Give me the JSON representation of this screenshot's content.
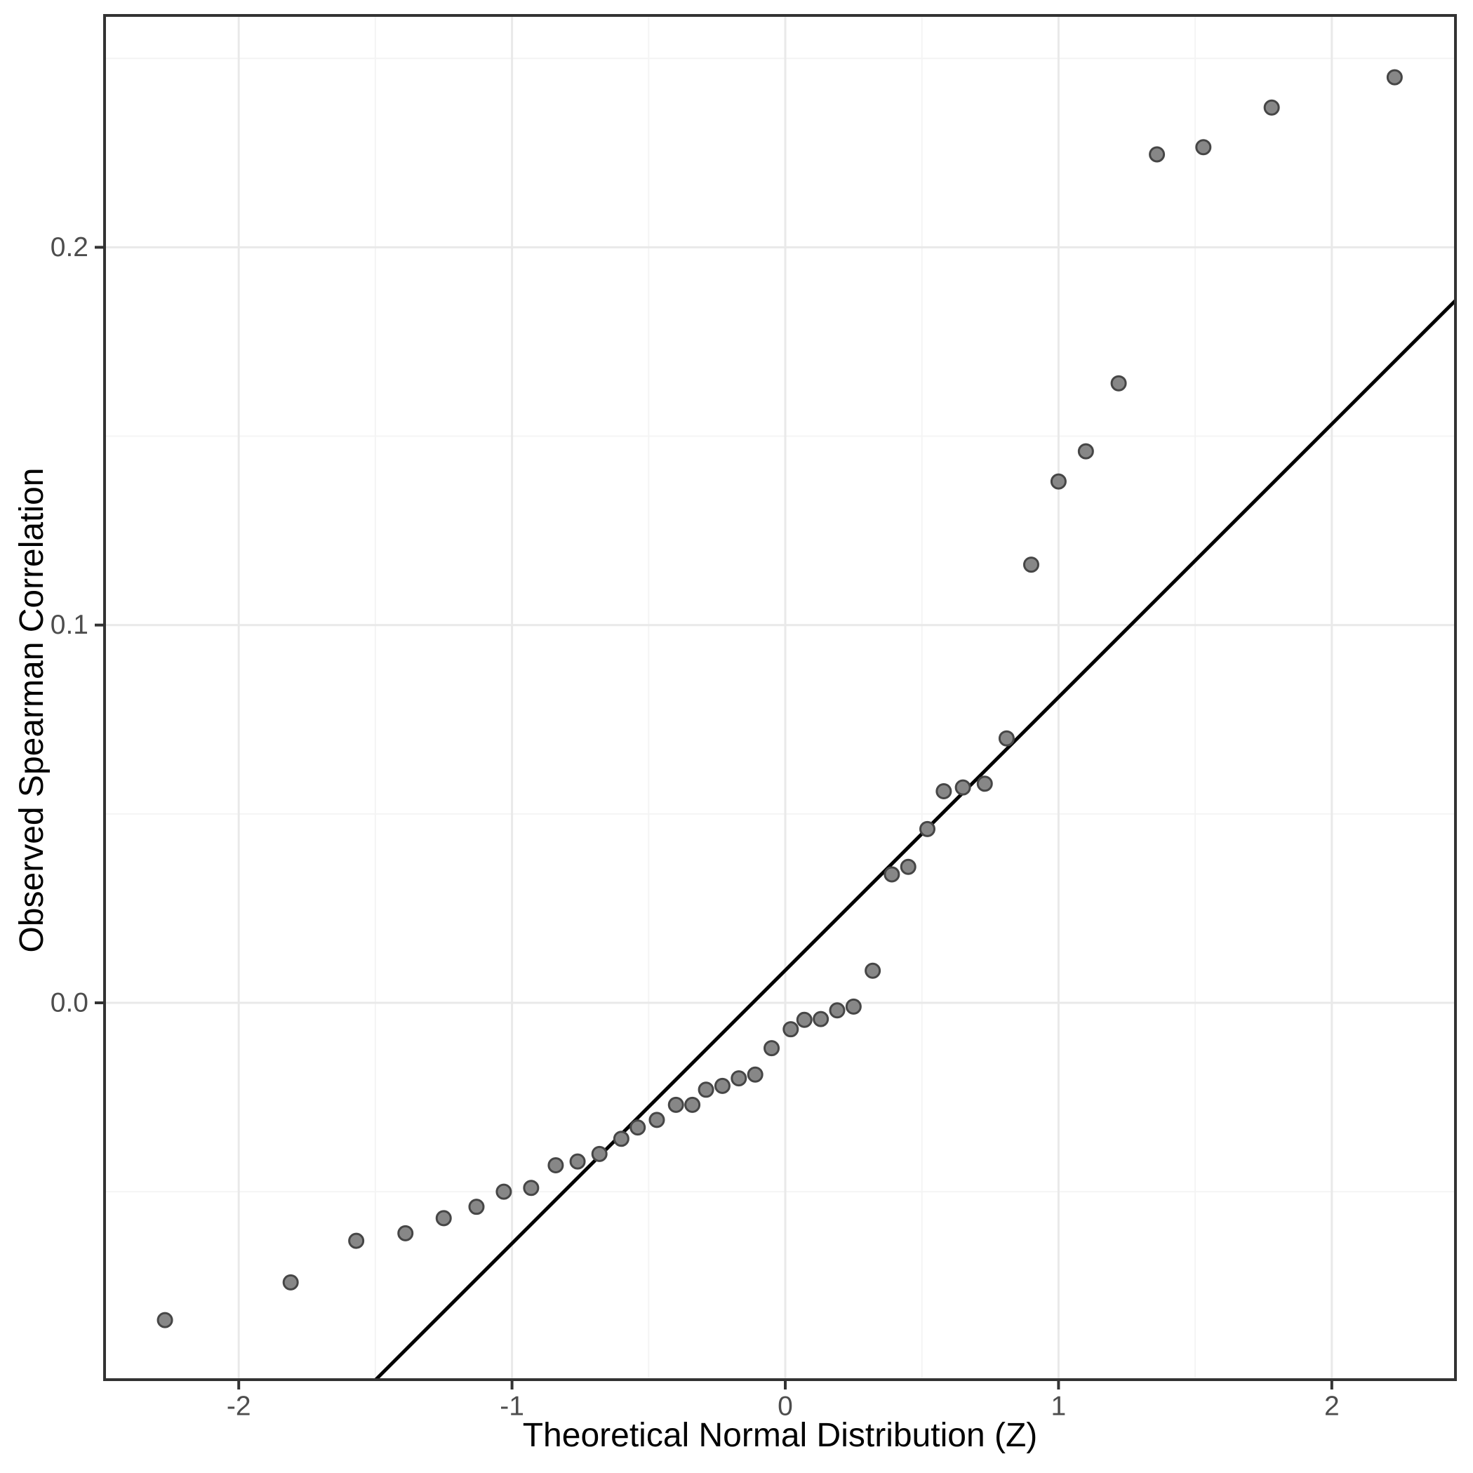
{
  "figure": {
    "background": "#FFFFFF",
    "panel_border_color": "#333333",
    "grid_major_color": "#E9E9E9",
    "grid_minor_color": "#F4F4F4",
    "tick_color": "#333333",
    "tick_label_color": "#4D4D4D",
    "axis_title_color": "#000000"
  },
  "chart_data": {
    "type": "scatter",
    "title": "",
    "xlabel": "Theoretical Normal Distribution (Z)",
    "ylabel": "Observed Spearman Correlation",
    "xlim": [
      -2.491,
      2.4525
    ],
    "ylim": [
      -0.0998,
      0.2614
    ],
    "grid": true,
    "legend": "none",
    "x_ticks": {
      "values": [
        -2,
        -1,
        0,
        1,
        2
      ],
      "labels": [
        "-2",
        "-1",
        "0",
        "1",
        "2"
      ]
    },
    "x_minor_ticks": [
      -1.5,
      -0.5,
      0.5,
      1.5
    ],
    "y_ticks": {
      "values": [
        0.0,
        0.1,
        0.2
      ],
      "labels": [
        "0.0",
        "0.1",
        "0.2"
      ]
    },
    "y_minor_ticks": [
      -0.05,
      0.05,
      0.15,
      0.25
    ],
    "points": [
      [
        -2.27,
        -0.084
      ],
      [
        -1.81,
        -0.074
      ],
      [
        -1.57,
        -0.063
      ],
      [
        -1.39,
        -0.061
      ],
      [
        -1.25,
        -0.057
      ],
      [
        -1.13,
        -0.054
      ],
      [
        -1.03,
        -0.05
      ],
      [
        -0.93,
        -0.049
      ],
      [
        -0.84,
        -0.043
      ],
      [
        -0.76,
        -0.042
      ],
      [
        -0.68,
        -0.04
      ],
      [
        -0.6,
        -0.036
      ],
      [
        -0.54,
        -0.033
      ],
      [
        -0.47,
        -0.031
      ],
      [
        -0.4,
        -0.027
      ],
      [
        -0.34,
        -0.027
      ],
      [
        -0.29,
        -0.023
      ],
      [
        -0.23,
        -0.022
      ],
      [
        -0.17,
        -0.02
      ],
      [
        -0.11,
        -0.019
      ],
      [
        -0.05,
        -0.012
      ],
      [
        0.02,
        -0.007
      ],
      [
        0.07,
        -0.0045
      ],
      [
        0.13,
        -0.0043
      ],
      [
        0.19,
        -0.002
      ],
      [
        0.25,
        -0.001
      ],
      [
        0.32,
        0.0085
      ],
      [
        0.39,
        0.034
      ],
      [
        0.45,
        0.036
      ],
      [
        0.52,
        0.046
      ],
      [
        0.58,
        0.056
      ],
      [
        0.65,
        0.057
      ],
      [
        0.73,
        0.058
      ],
      [
        0.81,
        0.07
      ],
      [
        0.9,
        0.116
      ],
      [
        1.0,
        0.138
      ],
      [
        1.1,
        0.146
      ],
      [
        1.22,
        0.164
      ],
      [
        1.36,
        0.2246
      ],
      [
        1.53,
        0.2265
      ],
      [
        1.78,
        0.237
      ],
      [
        2.23,
        0.245
      ]
    ],
    "reference_line": {
      "slope": 0.0723,
      "intercept": 0.0086,
      "color": "#000000"
    },
    "point_style": {
      "fill": "#878787",
      "stroke": "#464646",
      "radius": 10
    }
  }
}
